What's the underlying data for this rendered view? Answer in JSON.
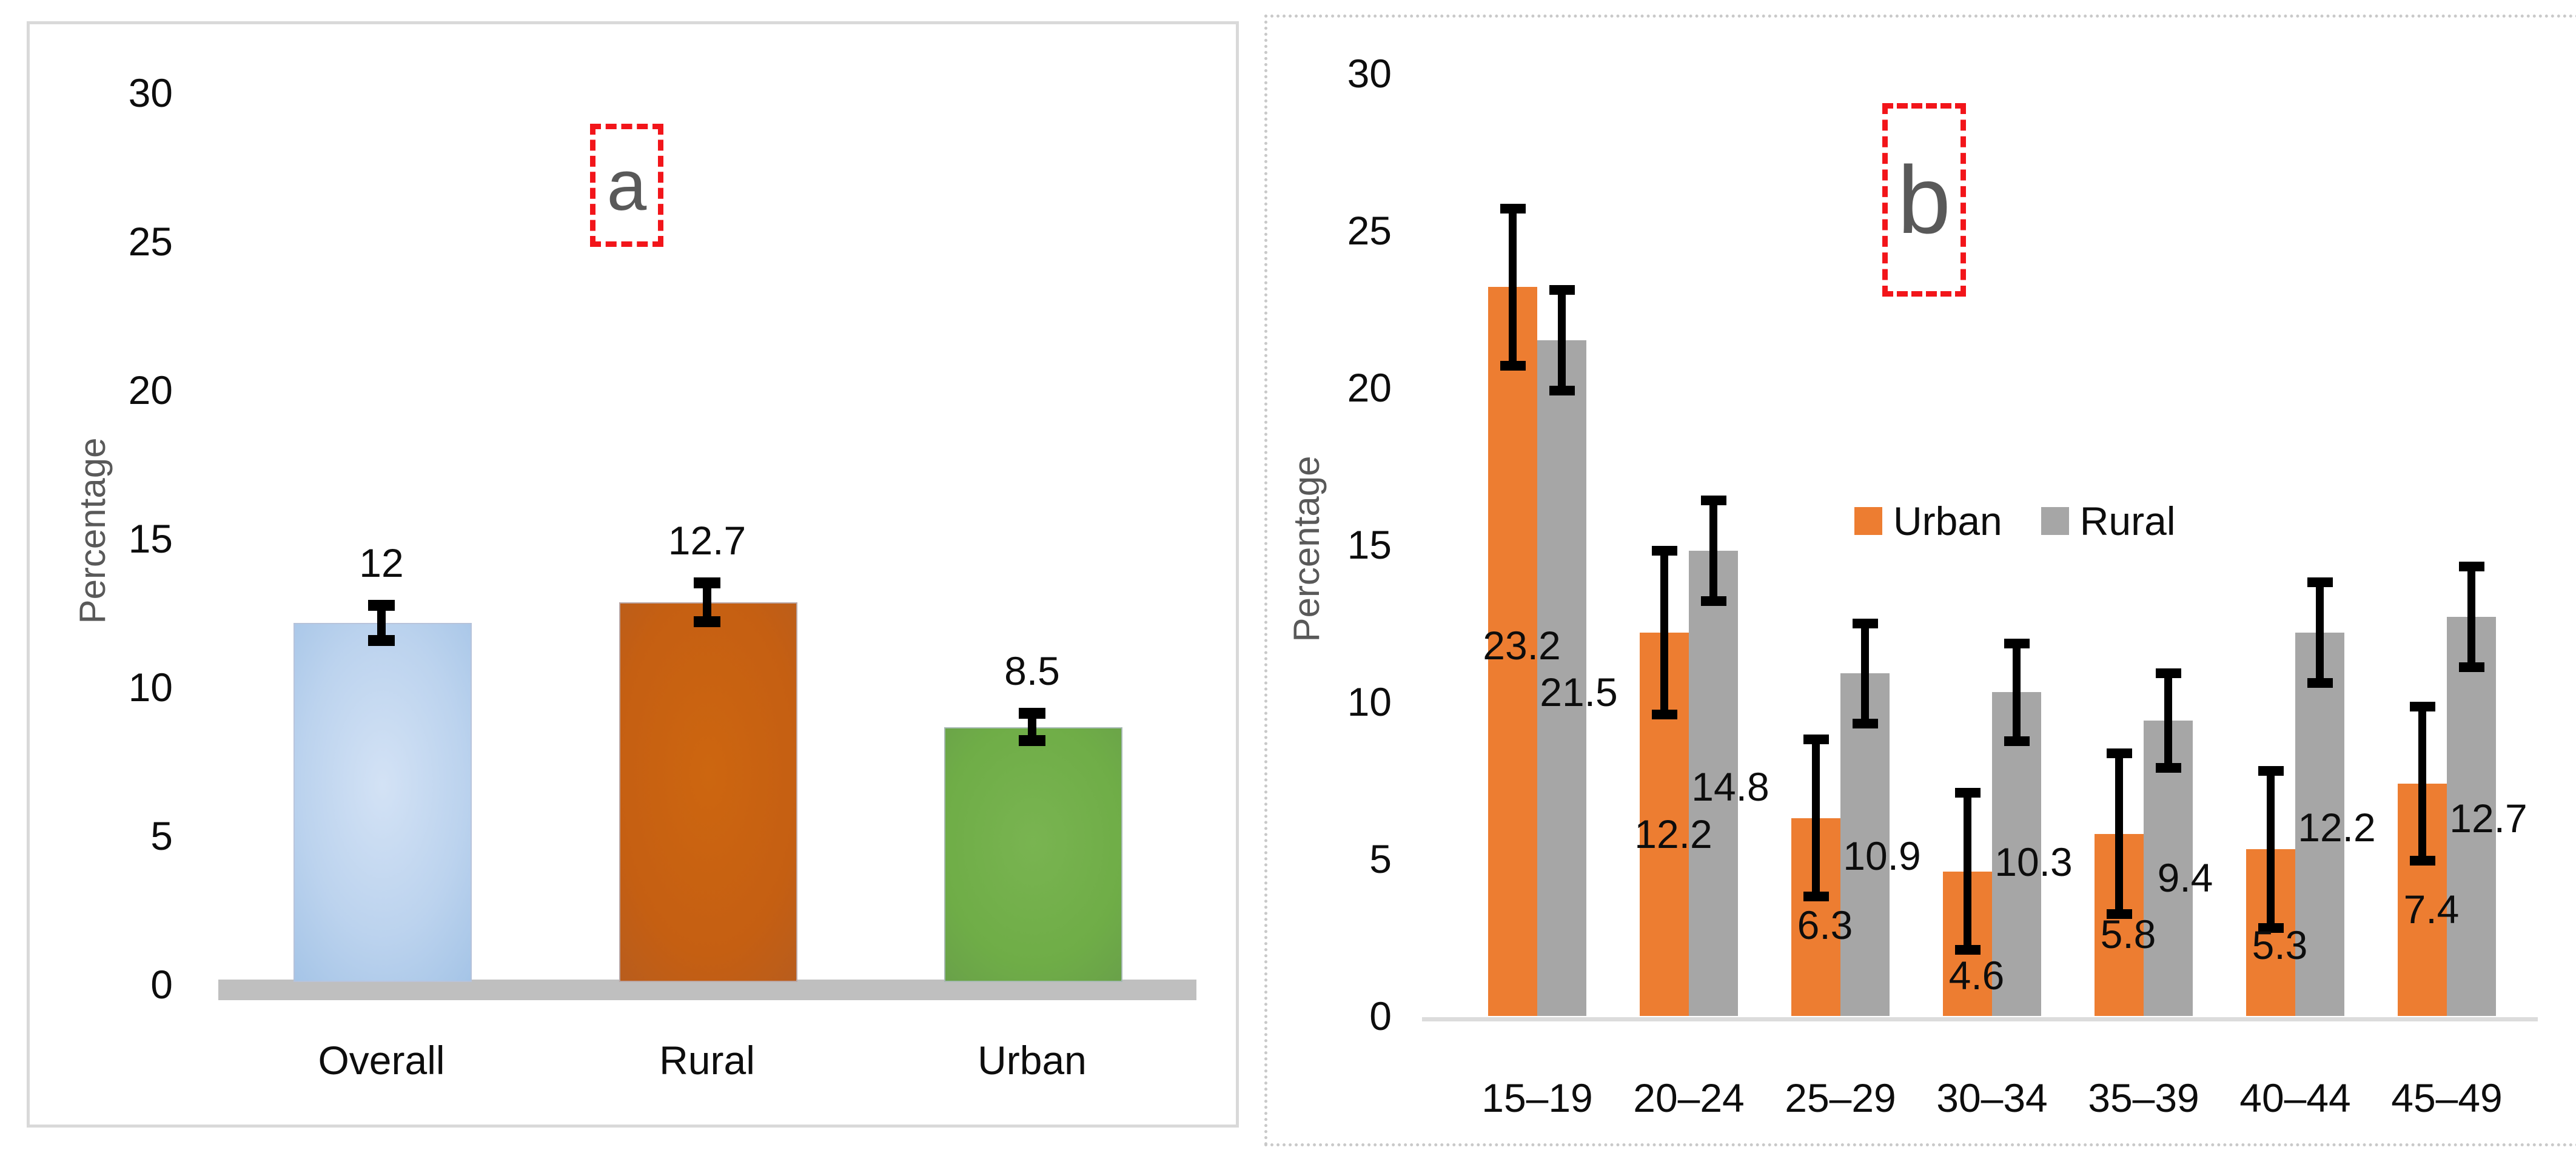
{
  "figure": {
    "description": "Two-panel bar chart figure",
    "letter_color": "#595959",
    "letterbox_border_color": "#f2151a",
    "panel_a_border": "solid light gray",
    "panel_b_border": "dotted light gray"
  },
  "chart_data": [
    {
      "type": "bar",
      "panel_label": "a",
      "title": "",
      "ylabel": "Percentage",
      "xlabel": "",
      "ylim": [
        0,
        30
      ],
      "yticks": [
        0,
        5,
        10,
        15,
        20,
        25,
        30
      ],
      "grid": false,
      "categories": [
        "Overall",
        "Rural",
        "Urban"
      ],
      "values": [
        12,
        12.7,
        8.5
      ],
      "value_labels": [
        "12",
        "12.7",
        "8.5"
      ],
      "errors": [
        0.6,
        0.65,
        0.45
      ],
      "bar_colors": [
        "#9dc3e6",
        "#c55a11",
        "#70ad47"
      ],
      "baseline_color": "#bfbfbf"
    },
    {
      "type": "grouped-bar",
      "panel_label": "b",
      "title": "",
      "ylabel": "Percentage",
      "xlabel": "",
      "ylim": [
        0,
        30
      ],
      "yticks": [
        0,
        5,
        10,
        15,
        20,
        25,
        30
      ],
      "grid": false,
      "categories": [
        "15–19",
        "20–24",
        "25–29",
        "30–34",
        "35–39",
        "40–44",
        "45–49"
      ],
      "series": [
        {
          "name": "Urban",
          "color": "#ed7d31",
          "values": [
            23.2,
            12.2,
            6.3,
            4.6,
            5.8,
            5.3,
            7.4
          ],
          "errors": [
            2.5,
            2.6,
            2.5,
            2.5,
            2.55,
            2.5,
            2.45
          ],
          "label_y_units": [
            11.8,
            5.8,
            2.9,
            1.3,
            2.6,
            2.25,
            3.4
          ]
        },
        {
          "name": "Rural",
          "color": "#a6a6a6",
          "values": [
            21.5,
            14.8,
            10.9,
            10.3,
            9.4,
            12.2,
            12.7
          ],
          "errors": [
            1.6,
            1.6,
            1.6,
            1.55,
            1.5,
            1.6,
            1.6
          ],
          "label_y_units": [
            10.3,
            7.3,
            5.1,
            4.9,
            4.4,
            6.0,
            6.3
          ]
        }
      ],
      "legend": [
        "Urban",
        "Rural"
      ],
      "legend_position": "center-right",
      "baseline_color": "#dcdcdc"
    }
  ]
}
